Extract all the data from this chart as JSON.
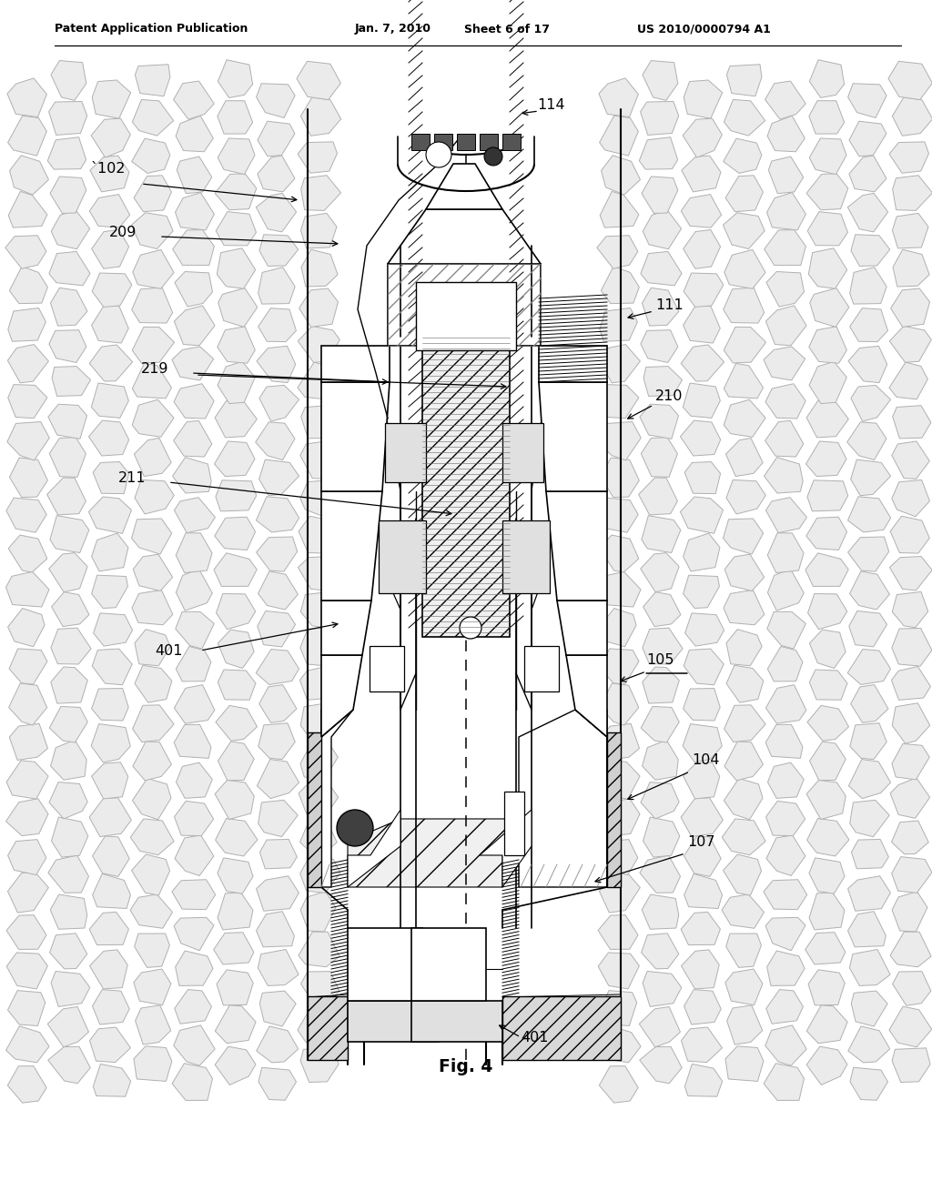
{
  "fig_width": 10.24,
  "fig_height": 13.2,
  "dpi": 100,
  "bg": "#ffffff",
  "header_left": "Patent Application Publication",
  "header_mid1": "Jan. 7, 2010",
  "header_mid2": "Sheet 6 of 17",
  "header_right": "US 2010/0000794 A1",
  "fig_label": "Fig. 4",
  "rock_color": "#e8e8e8",
  "rock_edge": "#aaaaaa",
  "lc": "#000000",
  "gray1": "#c8c8c8",
  "gray2": "#e0e0e0",
  "hatch_gray": "#888888"
}
